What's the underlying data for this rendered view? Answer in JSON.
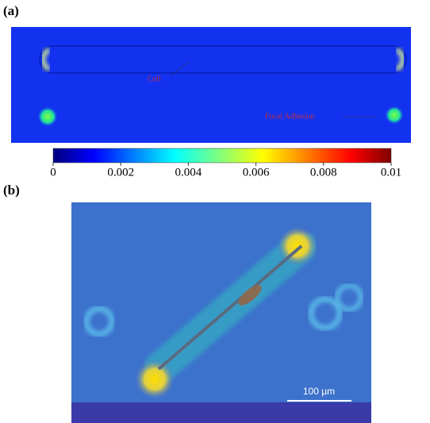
{
  "panels": [
    {
      "label": "(a)",
      "annotations": [
        "Cell",
        "Focal Adhesion"
      ]
    },
    {
      "label": "(b)",
      "scale_bar": "100 µm"
    }
  ],
  "colorbar": {
    "lim": [
      0,
      0.01
    ],
    "ticks": [
      0,
      0.002,
      0.004,
      0.006,
      0.008,
      0.01
    ]
  }
}
